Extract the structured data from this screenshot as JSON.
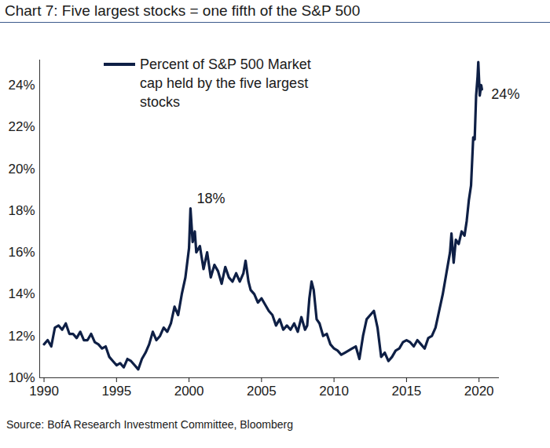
{
  "chart_data": {
    "type": "line",
    "title": "Chart 7: Five largest stocks = one fifth of the S&P 500",
    "source": "Source: BofA Research Investment Committee, Bloomberg",
    "legend": "top-left",
    "x": [
      1990.0,
      1990.25,
      1990.5,
      1990.75,
      1991.0,
      1991.25,
      1991.5,
      1991.75,
      1992.0,
      1992.25,
      1992.5,
      1992.75,
      1993.0,
      1993.25,
      1993.5,
      1993.75,
      1994.0,
      1994.25,
      1994.5,
      1994.75,
      1995.0,
      1995.25,
      1995.5,
      1995.75,
      1996.0,
      1996.25,
      1996.5,
      1996.75,
      1997.0,
      1997.25,
      1997.5,
      1997.75,
      1998.0,
      1998.25,
      1998.5,
      1998.75,
      1999.0,
      1999.25,
      1999.5,
      1999.75,
      2000.0,
      2000.1,
      2000.25,
      2000.4,
      2000.5,
      2000.75,
      2001.0,
      2001.25,
      2001.5,
      2001.75,
      2002.0,
      2002.25,
      2002.5,
      2002.75,
      2003.0,
      2003.25,
      2003.5,
      2003.75,
      2003.9,
      2004.1,
      2004.25,
      2004.5,
      2004.75,
      2005.0,
      2005.25,
      2005.5,
      2005.75,
      2006.0,
      2006.25,
      2006.5,
      2006.75,
      2007.0,
      2007.25,
      2007.5,
      2007.75,
      2008.0,
      2008.15,
      2008.3,
      2008.45,
      2008.6,
      2008.8,
      2009.0,
      2009.25,
      2009.5,
      2009.75,
      2010.0,
      2010.25,
      2010.5,
      2010.75,
      2011.0,
      2011.25,
      2011.5,
      2011.75,
      2012.0,
      2012.25,
      2012.5,
      2012.75,
      2013.0,
      2013.25,
      2013.5,
      2013.75,
      2014.0,
      2014.25,
      2014.5,
      2014.75,
      2015.0,
      2015.25,
      2015.5,
      2015.75,
      2016.0,
      2016.25,
      2016.5,
      2016.75,
      2017.0,
      2017.25,
      2017.5,
      2017.75,
      2018.0,
      2018.1,
      2018.25,
      2018.4,
      2018.6,
      2018.8,
      2019.0,
      2019.15,
      2019.3,
      2019.45,
      2019.6,
      2019.7,
      2019.8,
      2019.9,
      2019.95,
      2020.05,
      2020.15,
      2020.2
    ],
    "series": [
      {
        "name": "Percent of S&P 500 Market cap held by the five largest stocks",
        "color": "#0e1f45",
        "values": [
          11.6,
          11.8,
          11.5,
          12.4,
          12.5,
          12.3,
          12.6,
          12.1,
          12.1,
          11.9,
          12.2,
          11.8,
          11.8,
          12.1,
          11.7,
          11.6,
          11.4,
          11.5,
          11.0,
          10.8,
          10.6,
          10.7,
          10.5,
          10.9,
          10.8,
          10.6,
          10.4,
          10.9,
          11.2,
          11.6,
          12.2,
          11.8,
          12.0,
          12.4,
          12.2,
          12.6,
          13.4,
          13.0,
          14.0,
          14.8,
          16.2,
          18.1,
          16.5,
          17.0,
          16.0,
          16.3,
          15.2,
          16.0,
          14.8,
          15.4,
          15.1,
          14.5,
          15.3,
          14.8,
          14.6,
          15.0,
          14.6,
          15.0,
          15.6,
          14.6,
          14.2,
          14.0,
          13.6,
          13.8,
          13.5,
          13.2,
          13.0,
          12.5,
          12.8,
          12.3,
          12.5,
          12.3,
          12.6,
          12.2,
          12.9,
          12.3,
          12.5,
          13.8,
          14.6,
          14.2,
          12.8,
          12.6,
          12.0,
          12.1,
          11.6,
          11.4,
          11.3,
          11.1,
          11.2,
          11.3,
          11.4,
          11.5,
          10.9,
          12.0,
          12.8,
          13.0,
          13.2,
          12.4,
          11.0,
          11.2,
          10.8,
          11.0,
          11.3,
          11.4,
          11.7,
          11.8,
          11.7,
          11.5,
          11.8,
          11.6,
          11.4,
          11.9,
          12.0,
          12.4,
          13.2,
          14.0,
          15.0,
          16.0,
          16.9,
          15.5,
          16.6,
          16.4,
          17.0,
          16.8,
          17.5,
          18.5,
          19.2,
          21.5,
          21.4,
          23.5,
          24.4,
          25.1,
          23.5,
          24.0,
          23.8
        ]
      }
    ],
    "annotations": [
      {
        "text": "18%",
        "x": 2000.1,
        "y": 18.1
      },
      {
        "text": "24%",
        "x": 2020.2,
        "y": 23.8
      }
    ],
    "xlim": [
      1989.7,
      2021.4
    ],
    "xticks": [
      1990,
      1995,
      2000,
      2005,
      2010,
      2015,
      2020
    ],
    "ylim": [
      10,
      25.2
    ],
    "yticks": [
      {
        "value": 10,
        "label": "10%"
      },
      {
        "value": 12,
        "label": "12%"
      },
      {
        "value": 14,
        "label": "14%"
      },
      {
        "value": 16,
        "label": "16%"
      },
      {
        "value": 18,
        "label": "18%"
      },
      {
        "value": 20,
        "label": "20%"
      },
      {
        "value": 22,
        "label": "22%"
      },
      {
        "value": 24,
        "label": "24%"
      }
    ],
    "grid": false
  }
}
